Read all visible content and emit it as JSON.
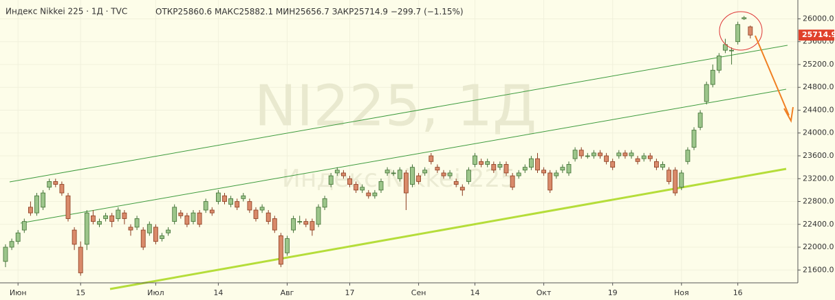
{
  "chart_data": {
    "type": "candlestick",
    "header": {
      "title": "Индекс Nikkei 225 · 1Д · TVC",
      "open_label": "ОТКР",
      "open": 25860.6,
      "high_label": "МАКС",
      "high": 25882.1,
      "low_label": "МИН",
      "low": 25656.7,
      "close_label": "ЗАКР",
      "close": 25714.9,
      "change": "−299.7 (−1.15%)"
    },
    "watermark": "NI225, 1Д",
    "watermark_subtitle": "Индекс Nikkei 225",
    "last_price": 25714.9,
    "last_price_color": "#e0412b",
    "up_color": "#9cc58a",
    "up_edge": "#3f6f33",
    "down_color": "#d98a6a",
    "down_edge": "#8a3a1e",
    "grid": true,
    "ylim": [
      21375,
      26330
    ],
    "yticks": [
      {
        "value": 21600,
        "label": "21600.0"
      },
      {
        "value": 22000,
        "label": "22000.0"
      },
      {
        "value": 22400,
        "label": "22400.0"
      },
      {
        "value": 22800,
        "label": "22800.0"
      },
      {
        "value": 23200,
        "label": "23200.0"
      },
      {
        "value": 23600,
        "label": "23600.0"
      },
      {
        "value": 24000,
        "label": "24000.0"
      },
      {
        "value": 24400,
        "label": "24400.0"
      },
      {
        "value": 24800,
        "label": "24800.0"
      },
      {
        "value": 25200,
        "label": "25200.0"
      },
      {
        "value": 25600,
        "label": "25600.0"
      },
      {
        "value": 26000,
        "label": "26000.0"
      }
    ],
    "categories": [
      null,
      null,
      "Июн",
      null,
      null,
      null,
      null,
      null,
      null,
      null,
      null,
      null,
      "15",
      null,
      null,
      null,
      null,
      null,
      null,
      null,
      null,
      null,
      null,
      null,
      "Июл",
      null,
      null,
      null,
      null,
      null,
      null,
      null,
      null,
      null,
      "14",
      null,
      null,
      null,
      null,
      null,
      null,
      null,
      null,
      null,
      null,
      "Авг",
      null,
      null,
      null,
      null,
      null,
      null,
      null,
      null,
      null,
      "17",
      null,
      null,
      null,
      null,
      null,
      null,
      null,
      null,
      null,
      null,
      "Сен",
      null,
      null,
      null,
      null,
      null,
      null,
      null,
      null,
      "14",
      null,
      null,
      null,
      null,
      null,
      null,
      null,
      null,
      null,
      null,
      "Окт",
      null,
      null,
      null,
      null,
      null,
      null,
      null,
      null,
      null,
      null,
      "19",
      null,
      null,
      null,
      null,
      null,
      null,
      null,
      null,
      null,
      null,
      "Ноя",
      null,
      null,
      null,
      null,
      null,
      null,
      null,
      null,
      "16",
      null,
      null
    ],
    "candles": [
      [
        21750,
        22050,
        21650,
        22000
      ],
      [
        22000,
        22150,
        21950,
        22100
      ],
      [
        22100,
        22300,
        22050,
        22250
      ],
      [
        22300,
        22500,
        22250,
        22450
      ],
      [
        22700,
        22800,
        22550,
        22600
      ],
      [
        22600,
        22950,
        22550,
        22900
      ],
      [
        22700,
        23000,
        22650,
        22950
      ],
      [
        23050,
        23200,
        23000,
        23150
      ],
      [
        23150,
        23200,
        23050,
        23100
      ],
      [
        23100,
        23150,
        22900,
        22950
      ],
      [
        22900,
        22950,
        22450,
        22500
      ],
      [
        22300,
        22350,
        21950,
        22050
      ],
      [
        22000,
        22100,
        21500,
        21550
      ],
      [
        22050,
        22650,
        21950,
        22600
      ],
      [
        22550,
        22650,
        22400,
        22450
      ],
      [
        22400,
        22500,
        22350,
        22450
      ],
      [
        22500,
        22600,
        22450,
        22550
      ],
      [
        22550,
        22600,
        22350,
        22450
      ],
      [
        22500,
        22700,
        22450,
        22650
      ],
      [
        22600,
        22650,
        22400,
        22500
      ],
      [
        22350,
        22400,
        22200,
        22300
      ],
      [
        22350,
        22550,
        22300,
        22500
      ],
      [
        22300,
        22350,
        21950,
        22000
      ],
      [
        22250,
        22450,
        22200,
        22400
      ],
      [
        22350,
        22400,
        22050,
        22100
      ],
      [
        22150,
        22250,
        22100,
        22200
      ],
      [
        22250,
        22350,
        22200,
        22300
      ],
      [
        22450,
        22750,
        22400,
        22700
      ],
      [
        22600,
        22650,
        22500,
        22550
      ],
      [
        22550,
        22600,
        22350,
        22400
      ],
      [
        22450,
        22650,
        22400,
        22600
      ],
      [
        22600,
        22650,
        22350,
        22400
      ],
      [
        22650,
        22850,
        22600,
        22800
      ],
      [
        22650,
        22700,
        22550,
        22600
      ],
      [
        22800,
        23000,
        22750,
        22950
      ],
      [
        22900,
        22950,
        22750,
        22800
      ],
      [
        22750,
        22900,
        22700,
        22850
      ],
      [
        22800,
        22850,
        22650,
        22700
      ],
      [
        22850,
        22950,
        22800,
        22900
      ],
      [
        22800,
        22850,
        22600,
        22650
      ],
      [
        22650,
        22700,
        22450,
        22500
      ],
      [
        22650,
        22750,
        22600,
        22700
      ],
      [
        22600,
        22650,
        22400,
        22450
      ],
      [
        22500,
        22550,
        22250,
        22300
      ],
      [
        22200,
        22250,
        21650,
        21700
      ],
      [
        21900,
        22200,
        21850,
        22150
      ],
      [
        22300,
        22550,
        22250,
        22500
      ],
      [
        22450,
        22550,
        22400,
        22450
      ],
      [
        22450,
        22500,
        22350,
        22400
      ],
      [
        22450,
        22500,
        22200,
        22300
      ],
      [
        22400,
        22750,
        22350,
        22700
      ],
      [
        22700,
        22900,
        22650,
        22850
      ],
      [
        23100,
        23300,
        23050,
        23250
      ],
      [
        23300,
        23400,
        23250,
        23350
      ],
      [
        23300,
        23350,
        23200,
        23250
      ],
      [
        23200,
        23250,
        23050,
        23100
      ],
      [
        23100,
        23150,
        22950,
        23000
      ],
      [
        23000,
        23100,
        22950,
        23050
      ],
      [
        22950,
        23000,
        22850,
        22900
      ],
      [
        22900,
        23000,
        22850,
        22950
      ],
      [
        23000,
        23200,
        22950,
        23150
      ],
      [
        23300,
        23400,
        23250,
        23350
      ],
      [
        23300,
        23350,
        23250,
        23300
      ],
      [
        23200,
        23400,
        23150,
        23350
      ],
      [
        23300,
        23350,
        22650,
        22950
      ],
      [
        23100,
        23450,
        23050,
        23400
      ],
      [
        23250,
        23300,
        23100,
        23150
      ],
      [
        23300,
        23400,
        23250,
        23350
      ],
      [
        23600,
        23650,
        23450,
        23500
      ],
      [
        23400,
        23450,
        23300,
        23350
      ],
      [
        23300,
        23350,
        23200,
        23250
      ],
      [
        23250,
        23350,
        23200,
        23300
      ],
      [
        23150,
        23200,
        23050,
        23100
      ],
      [
        23050,
        23100,
        22900,
        23000
      ],
      [
        23150,
        23400,
        23100,
        23350
      ],
      [
        23450,
        23650,
        23400,
        23600
      ],
      [
        23500,
        23550,
        23400,
        23450
      ],
      [
        23450,
        23550,
        23400,
        23500
      ],
      [
        23450,
        23500,
        23300,
        23350
      ],
      [
        23400,
        23500,
        23350,
        23450
      ],
      [
        23450,
        23500,
        23250,
        23300
      ],
      [
        23250,
        23300,
        23000,
        23050
      ],
      [
        23250,
        23350,
        23200,
        23300
      ],
      [
        23350,
        23450,
        23300,
        23400
      ],
      [
        23400,
        23600,
        23350,
        23550
      ],
      [
        23550,
        23650,
        23300,
        23350
      ],
      [
        23350,
        23400,
        23250,
        23300
      ],
      [
        23300,
        23350,
        22950,
        23000
      ],
      [
        23250,
        23350,
        23200,
        23300
      ],
      [
        23350,
        23450,
        23300,
        23400
      ],
      [
        23300,
        23500,
        23250,
        23450
      ],
      [
        23550,
        23750,
        23500,
        23700
      ],
      [
        23700,
        23750,
        23550,
        23600
      ],
      [
        23600,
        23650,
        23550,
        23600
      ],
      [
        23600,
        23700,
        23550,
        23650
      ],
      [
        23650,
        23700,
        23550,
        23600
      ],
      [
        23600,
        23650,
        23450,
        23500
      ],
      [
        23500,
        23550,
        23350,
        23400
      ],
      [
        23600,
        23700,
        23550,
        23650
      ],
      [
        23650,
        23700,
        23550,
        23600
      ],
      [
        23600,
        23700,
        23550,
        23650
      ],
      [
        23550,
        23600,
        23450,
        23500
      ],
      [
        23550,
        23650,
        23500,
        23600
      ],
      [
        23600,
        23650,
        23500,
        23550
      ],
      [
        23500,
        23550,
        23350,
        23400
      ],
      [
        23400,
        23500,
        23350,
        23450
      ],
      [
        23350,
        23400,
        23100,
        23150
      ],
      [
        23350,
        23400,
        22900,
        22950
      ],
      [
        23050,
        23350,
        23000,
        23300
      ],
      [
        23500,
        23750,
        23450,
        23700
      ],
      [
        23750,
        24100,
        23700,
        24050
      ],
      [
        24100,
        24400,
        24050,
        24350
      ],
      [
        24550,
        24900,
        24500,
        24850
      ],
      [
        24850,
        25200,
        24800,
        25100
      ],
      [
        25100,
        25400,
        25050,
        25350
      ],
      [
        25450,
        25650,
        25400,
        25550
      ],
      [
        25450,
        25500,
        25200,
        25450
      ],
      [
        25600,
        25950,
        25550,
        25900
      ],
      [
        26000,
        26050,
        25980,
        26020
      ],
      [
        25860.6,
        25882.1,
        25656.7,
        25714.9
      ]
    ]
  }
}
